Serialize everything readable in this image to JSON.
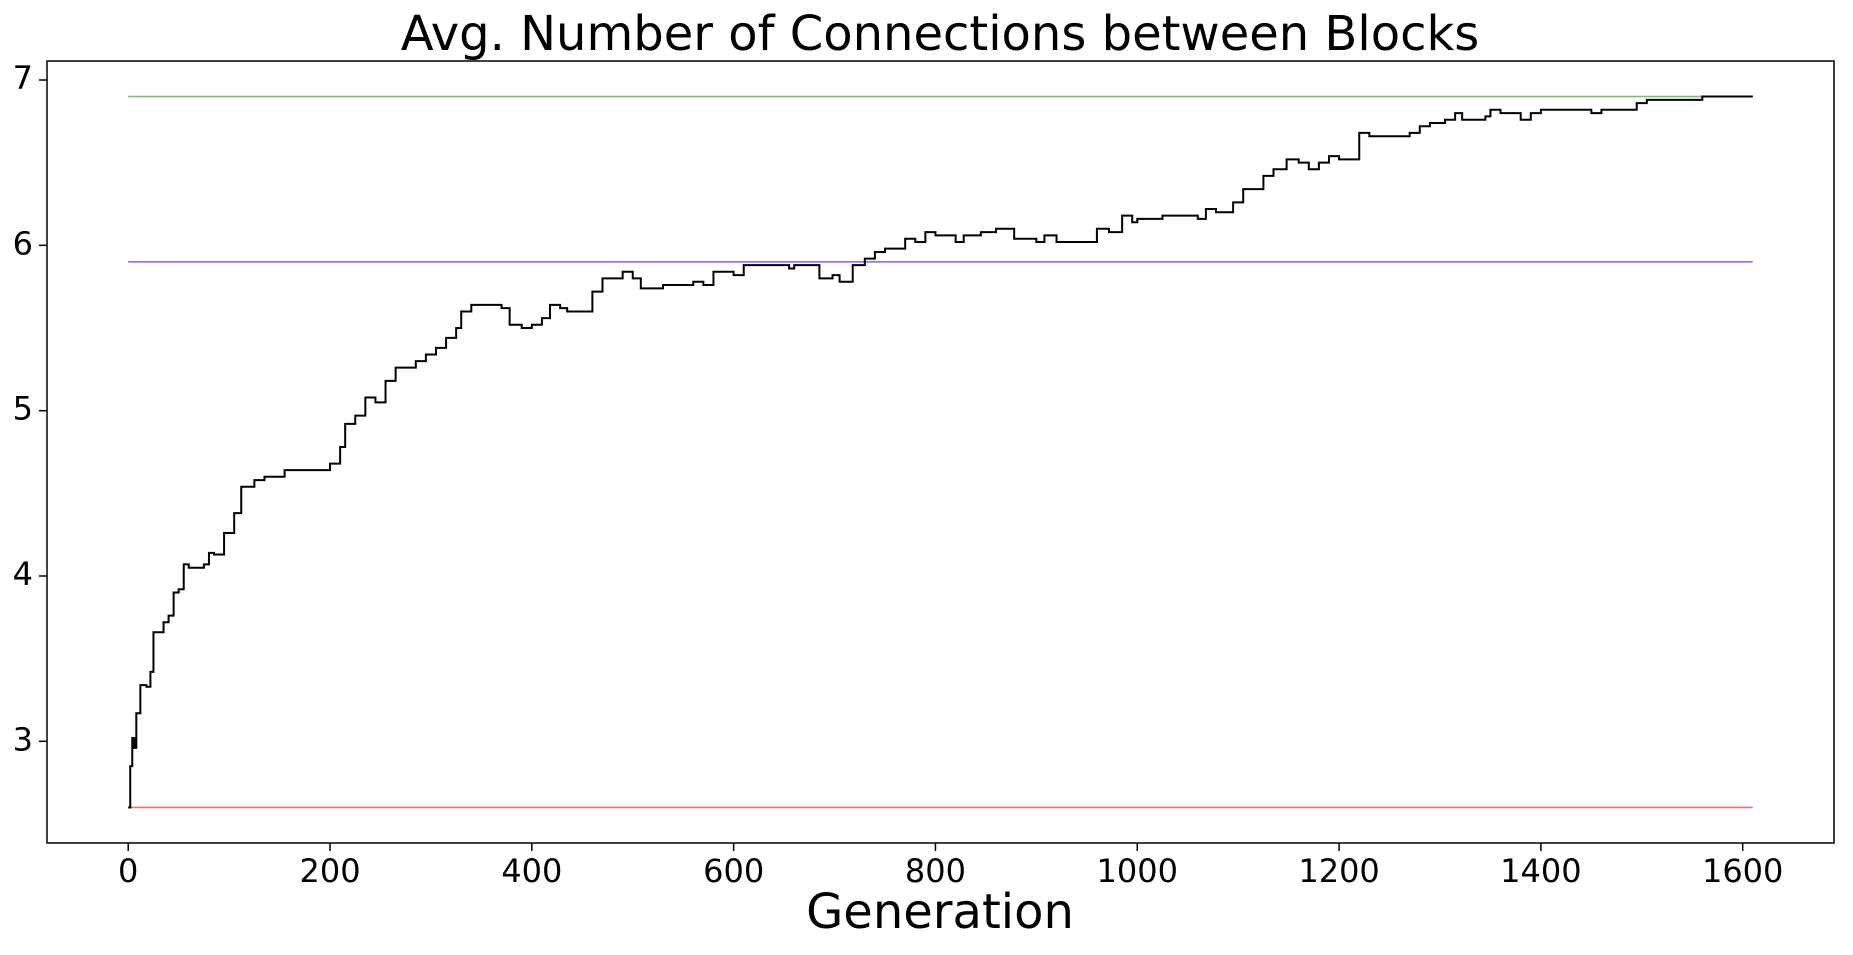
{
  "chart_data": {
    "type": "line",
    "step": "post",
    "title": "Avg. Number of Connections between Blocks",
    "x_label": "Generation",
    "xlim": [
      -80.5,
      1690.5
    ],
    "ylim": [
      2.385,
      7.115
    ],
    "xticks": [
      0,
      200,
      400,
      600,
      800,
      1000,
      1200,
      1400,
      1600
    ],
    "yticks": [
      3,
      4,
      5,
      6,
      7
    ],
    "grid": false,
    "series": [
      {
        "color": "#7dbd7d",
        "x": [
          0,
          1610
        ],
        "values": [
          6.9,
          6.9
        ]
      },
      {
        "color": "#6b6bf0",
        "x": [
          0,
          1610
        ],
        "values": [
          5.9,
          5.9
        ]
      },
      {
        "color": "#f07272",
        "x": [
          0,
          1610
        ],
        "values": [
          2.6,
          2.6
        ]
      },
      {
        "color": "#000000",
        "x": [
          0,
          2,
          4,
          6,
          8,
          12,
          18,
          22,
          25,
          35,
          40,
          45,
          50,
          55,
          60,
          75,
          80,
          85,
          95,
          105,
          112,
          125,
          135,
          155,
          200,
          210,
          215,
          225,
          235,
          245,
          255,
          265,
          285,
          295,
          305,
          315,
          325,
          330,
          340,
          370,
          378,
          390,
          400,
          410,
          418,
          428,
          435,
          460,
          470,
          490,
          500,
          508,
          530,
          560,
          570,
          580,
          600,
          610,
          655,
          660,
          685,
          698,
          705,
          718,
          730,
          740,
          750,
          770,
          780,
          790,
          800,
          820,
          828,
          845,
          860,
          878,
          900,
          908,
          920,
          960,
          972,
          985,
          995,
          1000,
          1025,
          1060,
          1068,
          1078,
          1095,
          1105,
          1125,
          1135,
          1148,
          1160,
          1170,
          1180,
          1190,
          1200,
          1220,
          1230,
          1270,
          1280,
          1290,
          1305,
          1315,
          1322,
          1345,
          1350,
          1360,
          1380,
          1390,
          1400,
          1450,
          1460,
          1495,
          1505,
          1560,
          1610
        ],
        "values": [
          2.6,
          2.85,
          3.02,
          2.96,
          3.17,
          3.34,
          3.33,
          3.42,
          3.66,
          3.72,
          3.76,
          3.9,
          3.92,
          4.07,
          4.05,
          4.07,
          4.14,
          4.13,
          4.26,
          4.38,
          4.54,
          4.58,
          4.6,
          4.64,
          4.68,
          4.78,
          4.92,
          4.97,
          5.08,
          5.05,
          5.18,
          5.26,
          5.3,
          5.34,
          5.38,
          5.44,
          5.5,
          5.6,
          5.64,
          5.62,
          5.52,
          5.5,
          5.52,
          5.56,
          5.64,
          5.62,
          5.6,
          5.72,
          5.8,
          5.84,
          5.8,
          5.74,
          5.76,
          5.78,
          5.76,
          5.84,
          5.82,
          5.88,
          5.86,
          5.88,
          5.8,
          5.82,
          5.78,
          5.88,
          5.92,
          5.96,
          5.98,
          6.04,
          6.02,
          6.08,
          6.06,
          6.02,
          6.06,
          6.08,
          6.1,
          6.04,
          6.02,
          6.06,
          6.02,
          6.1,
          6.08,
          6.18,
          6.14,
          6.16,
          6.18,
          6.16,
          6.22,
          6.2,
          6.26,
          6.34,
          6.42,
          6.46,
          6.52,
          6.5,
          6.46,
          6.5,
          6.54,
          6.52,
          6.68,
          6.66,
          6.68,
          6.72,
          6.74,
          6.76,
          6.8,
          6.76,
          6.78,
          6.82,
          6.8,
          6.76,
          6.8,
          6.82,
          6.8,
          6.82,
          6.86,
          6.88,
          6.9,
          6.9
        ]
      }
    ]
  }
}
